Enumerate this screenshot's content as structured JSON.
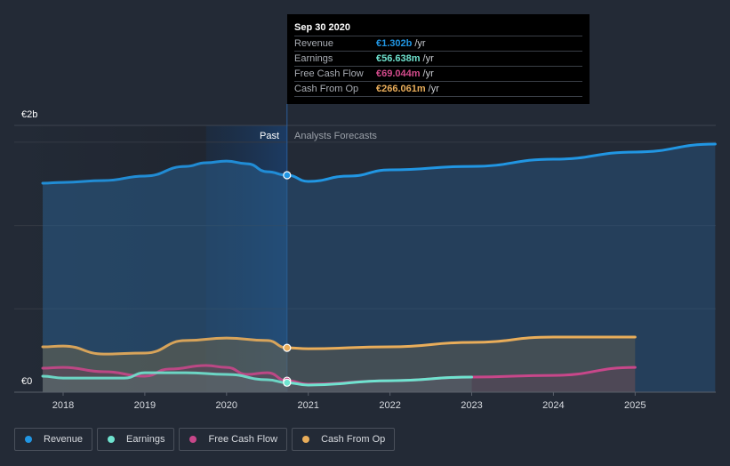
{
  "tooltip": {
    "date": "Sep 30 2020",
    "rows": [
      {
        "label": "Revenue",
        "value": "€1.302b",
        "unit": "/yr",
        "color": "#2196e3"
      },
      {
        "label": "Earnings",
        "value": "€56.638m",
        "unit": "/yr",
        "color": "#6fe3cf"
      },
      {
        "label": "Free Cash Flow",
        "value": "€69.044m",
        "unit": "/yr",
        "color": "#d44b8c"
      },
      {
        "label": "Cash From Op",
        "value": "€266.061m",
        "unit": "/yr",
        "color": "#e9ad5a"
      }
    ]
  },
  "segments": {
    "past": "Past",
    "forecast": "Analysts Forecasts"
  },
  "legend": [
    {
      "label": "Revenue",
      "color": "#2196e3"
    },
    {
      "label": "Earnings",
      "color": "#6fe3cf"
    },
    {
      "label": "Free Cash Flow",
      "color": "#c8478a"
    },
    {
      "label": "Cash From Op",
      "color": "#e9ad5a"
    }
  ],
  "chart_data": {
    "type": "area",
    "title": "",
    "xlabel": "",
    "ylabel": "",
    "units": "€m",
    "y_tick_labels": [
      "€0",
      "€2b"
    ],
    "x_ticks": [
      2018,
      2019,
      2020,
      2021,
      2022,
      2023,
      2024,
      2025
    ],
    "xlim": [
      2017.75,
      2026.0
    ],
    "ylim": [
      0,
      1600
    ],
    "divider_x": 2020.74,
    "highlight_band": [
      2019.75,
      2020.74
    ],
    "grid": true,
    "legend_position": "bottom",
    "series": [
      {
        "name": "Revenue",
        "color": "#2196e3",
        "past": [
          [
            2017.75,
            1254
          ],
          [
            2018,
            1259
          ],
          [
            2018.5,
            1270
          ],
          [
            2019,
            1297
          ],
          [
            2019.5,
            1355
          ],
          [
            2019.75,
            1377
          ],
          [
            2020,
            1387
          ],
          [
            2020.25,
            1371
          ],
          [
            2020.5,
            1323
          ],
          [
            2020.74,
            1302
          ]
        ],
        "forecast": [
          [
            2020.74,
            1302
          ],
          [
            2021,
            1265
          ],
          [
            2021.5,
            1297
          ],
          [
            2022,
            1334
          ],
          [
            2023,
            1355
          ],
          [
            2024,
            1398
          ],
          [
            2025,
            1441
          ],
          [
            2025.98,
            1489
          ]
        ]
      },
      {
        "name": "Cash From Op",
        "color": "#e9ad5a",
        "past": [
          [
            2017.75,
            272
          ],
          [
            2018,
            277
          ],
          [
            2018.5,
            229
          ],
          [
            2019,
            235
          ],
          [
            2019.5,
            310
          ],
          [
            2020,
            325
          ],
          [
            2020.5,
            310
          ],
          [
            2020.74,
            266
          ]
        ],
        "forecast": [
          [
            2020.74,
            266
          ],
          [
            2021,
            261
          ],
          [
            2022,
            272
          ],
          [
            2023,
            299
          ],
          [
            2024,
            331
          ],
          [
            2025,
            331
          ]
        ]
      },
      {
        "name": "Free Cash Flow",
        "color": "#c8478a",
        "past": [
          [
            2017.75,
            144
          ],
          [
            2018,
            149
          ],
          [
            2018.5,
            123
          ],
          [
            2019,
            96
          ],
          [
            2019.3,
            139
          ],
          [
            2019.75,
            160
          ],
          [
            2020,
            149
          ],
          [
            2020.25,
            107
          ],
          [
            2020.5,
            117
          ],
          [
            2020.74,
            69
          ]
        ],
        "forecast": [
          [
            2020.74,
            69
          ],
          [
            2021,
            48
          ],
          [
            2022,
            69
          ],
          [
            2023,
            91
          ],
          [
            2024,
            101
          ],
          [
            2025,
            149
          ]
        ]
      },
      {
        "name": "Earnings",
        "color": "#6fe3cf",
        "past": [
          [
            2017.75,
            96
          ],
          [
            2018,
            85
          ],
          [
            2018.75,
            85
          ],
          [
            2019,
            117
          ],
          [
            2019.5,
            117
          ],
          [
            2020,
            107
          ],
          [
            2020.5,
            75
          ],
          [
            2020.74,
            57
          ]
        ],
        "forecast": [
          [
            2020.74,
            57
          ],
          [
            2021,
            43
          ],
          [
            2022,
            69
          ],
          [
            2023,
            91
          ]
        ]
      }
    ]
  }
}
